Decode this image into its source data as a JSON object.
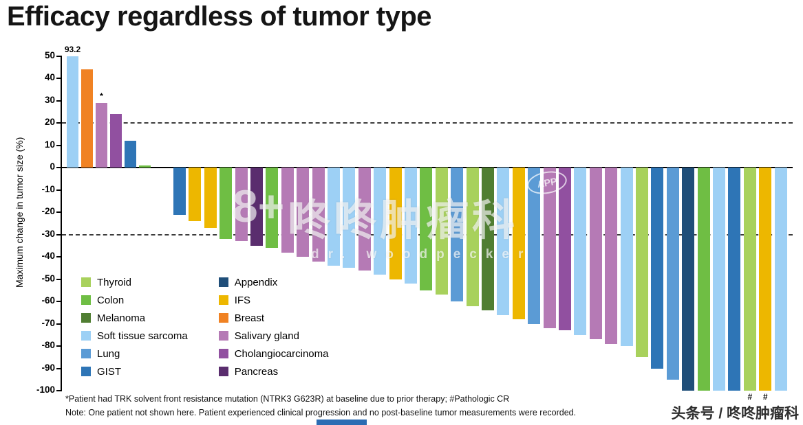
{
  "title": "Efficacy regardless of tumor type",
  "chart_data": {
    "type": "bar",
    "title": "Efficacy regardless of tumor type",
    "ylabel": "Maximum change in tumor size (%)",
    "ylim": [
      -100,
      50
    ],
    "yticks": [
      50,
      40,
      30,
      20,
      10,
      0,
      -10,
      -20,
      -30,
      -40,
      -50,
      -60,
      -70,
      -80,
      -90,
      -100
    ],
    "reference_lines": [
      20,
      -30
    ],
    "bar_colors": {
      "thyroid": "#a8d15c",
      "colon": "#6fbe44",
      "melanoma": "#507e32",
      "soft_tissue_sarcoma": "#9dd0f5",
      "lung": "#5b9bd5",
      "gist": "#2e75b6",
      "appendix": "#1f4e79",
      "ifs": "#edb700",
      "breast": "#f08223",
      "salivary_gland": "#b57ab5",
      "cholangiocarcinoma": "#9150a0",
      "pancreas": "#5a2d6e"
    },
    "positive_bars": [
      {
        "value": 93.2,
        "type": "soft_tissue_sarcoma",
        "annotation": "93.2",
        "capped_at": 50
      },
      {
        "value": 44,
        "type": "breast"
      },
      {
        "value": 29,
        "type": "salivary_gland",
        "annotation": "*"
      },
      {
        "value": 24,
        "type": "cholangiocarcinoma"
      },
      {
        "value": 12,
        "type": "gist"
      },
      {
        "value": 1,
        "type": "colon"
      }
    ],
    "negative_bars": [
      {
        "value": -21,
        "type": "gist"
      },
      {
        "value": -24,
        "type": "ifs"
      },
      {
        "value": -27,
        "type": "ifs"
      },
      {
        "value": -32,
        "type": "colon"
      },
      {
        "value": -33,
        "type": "salivary_gland"
      },
      {
        "value": -35,
        "type": "pancreas"
      },
      {
        "value": -36,
        "type": "colon"
      },
      {
        "value": -38,
        "type": "salivary_gland"
      },
      {
        "value": -40,
        "type": "salivary_gland"
      },
      {
        "value": -42,
        "type": "salivary_gland"
      },
      {
        "value": -44,
        "type": "soft_tissue_sarcoma"
      },
      {
        "value": -45,
        "type": "soft_tissue_sarcoma"
      },
      {
        "value": -46,
        "type": "salivary_gland"
      },
      {
        "value": -48,
        "type": "soft_tissue_sarcoma"
      },
      {
        "value": -50,
        "type": "ifs"
      },
      {
        "value": -52,
        "type": "soft_tissue_sarcoma"
      },
      {
        "value": -55,
        "type": "colon"
      },
      {
        "value": -57,
        "type": "thyroid"
      },
      {
        "value": -60,
        "type": "lung"
      },
      {
        "value": -62,
        "type": "thyroid"
      },
      {
        "value": -64,
        "type": "melanoma"
      },
      {
        "value": -66,
        "type": "soft_tissue_sarcoma"
      },
      {
        "value": -68,
        "type": "ifs"
      },
      {
        "value": -70,
        "type": "lung"
      },
      {
        "value": -72,
        "type": "salivary_gland"
      },
      {
        "value": -73,
        "type": "cholangiocarcinoma"
      },
      {
        "value": -75,
        "type": "soft_tissue_sarcoma"
      },
      {
        "value": -77,
        "type": "salivary_gland"
      },
      {
        "value": -79,
        "type": "salivary_gland"
      },
      {
        "value": -80,
        "type": "soft_tissue_sarcoma"
      },
      {
        "value": -85,
        "type": "thyroid"
      },
      {
        "value": -90,
        "type": "gist"
      },
      {
        "value": -95,
        "type": "lung"
      },
      {
        "value": -100,
        "type": "appendix"
      },
      {
        "value": -100,
        "type": "colon"
      },
      {
        "value": -100,
        "type": "soft_tissue_sarcoma"
      },
      {
        "value": -100,
        "type": "gist"
      },
      {
        "value": -100,
        "type": "thyroid",
        "annotation": "#"
      },
      {
        "value": -100,
        "type": "ifs",
        "annotation": "#"
      },
      {
        "value": -100,
        "type": "soft_tissue_sarcoma"
      }
    ]
  },
  "legend": {
    "columns": [
      [
        {
          "label": "Thyroid",
          "key": "thyroid"
        },
        {
          "label": "Colon",
          "key": "colon"
        },
        {
          "label": "Melanoma",
          "key": "melanoma"
        },
        {
          "label": "Soft tissue sarcoma",
          "key": "soft_tissue_sarcoma"
        },
        {
          "label": "Lung",
          "key": "lung"
        },
        {
          "label": "GIST",
          "key": "gist"
        }
      ],
      [
        {
          "label": "Appendix",
          "key": "appendix"
        },
        {
          "label": "IFS",
          "key": "ifs"
        },
        {
          "label": "Breast",
          "key": "breast"
        },
        {
          "label": "Salivary gland",
          "key": "salivary_gland"
        },
        {
          "label": "Cholangiocarcinoma",
          "key": "cholangiocarcinoma"
        },
        {
          "label": "Pancreas",
          "key": "pancreas"
        }
      ]
    ]
  },
  "footnotes": {
    "line1": "*Patient had TRK solvent front resistance mutation (NTRK3 G623R) at baseline due to prior therapy; #Pathologic CR",
    "line2": "Note: One patient not shown here. Patient experienced clinical progression and no post-baseline tumor measurements were recorded."
  },
  "watermark": {
    "logo": "8+",
    "app_badge": "APP",
    "main_text": "咚咚肿瘤科",
    "sub_text": "dr. woodpecker"
  },
  "branding": {
    "text": "头条号 / 咚咚肿瘤科"
  }
}
